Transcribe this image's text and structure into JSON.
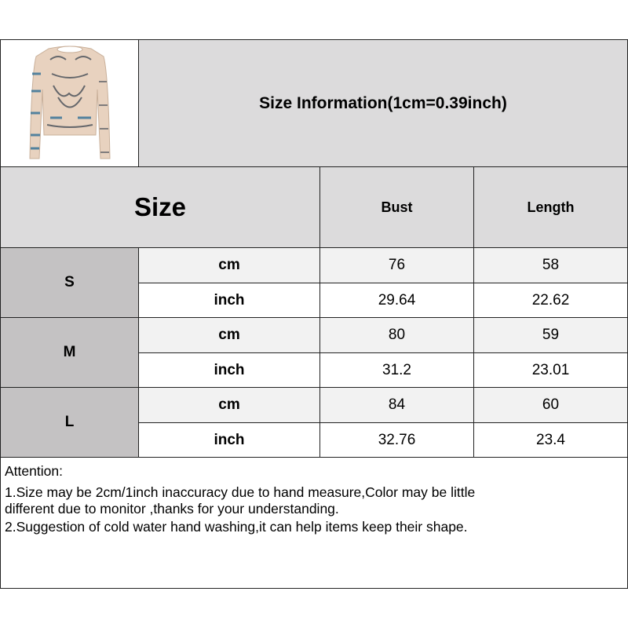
{
  "title": "Size Information(1cm=0.39inch)",
  "header": {
    "size": "Size",
    "bust": "Bust",
    "length": "Length"
  },
  "rows": [
    {
      "size": "S",
      "cm": {
        "unit": "cm",
        "bust": "76",
        "length": "58"
      },
      "inch": {
        "unit": "inch",
        "bust": "29.64",
        "length": "22.62"
      }
    },
    {
      "size": "M",
      "cm": {
        "unit": "cm",
        "bust": "80",
        "length": "59"
      },
      "inch": {
        "unit": "inch",
        "bust": "31.2",
        "length": "23.01"
      }
    },
    {
      "size": "L",
      "cm": {
        "unit": "cm",
        "bust": "84",
        "length": "60"
      },
      "inch": {
        "unit": "inch",
        "bust": "32.76",
        "length": "23.4"
      }
    }
  ],
  "attention": {
    "heading": "Attention:",
    "line1a": "1.Size may be 2cm/1inch inaccuracy due to hand measure,Color may be little",
    "line1b": "different due to monitor ,thanks for your understanding.",
    "line2": "2.Suggestion of cold water hand washing,it can help items keep their shape."
  },
  "colors": {
    "header_bg": "#dcdbdc",
    "size_bg": "#c4c2c3",
    "cm_row_bg": "#f2f2f2",
    "inch_row_bg": "#ffffff"
  }
}
